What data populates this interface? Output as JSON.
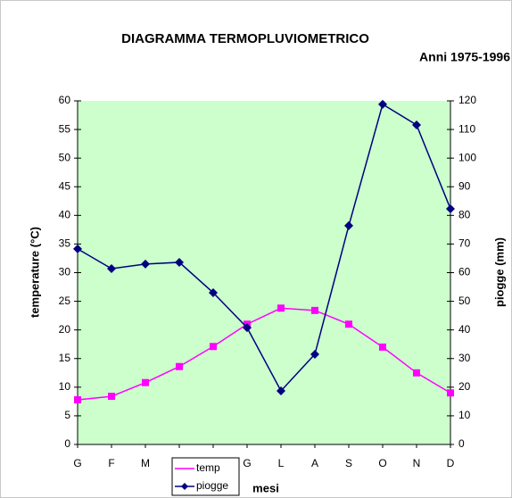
{
  "chart_data": {
    "type": "line",
    "title": "DIAGRAMMA  TERMOPLUVIOMETRICO",
    "subtitle": "Anni 1975-1996",
    "x_label": "mesi",
    "y_label": "temperature (°C)",
    "y2_label": "piogge (mm)",
    "categories": [
      "G",
      "F",
      "M",
      "A",
      "M",
      "G",
      "L",
      "A",
      "S",
      "O",
      "N",
      "D"
    ],
    "series": [
      {
        "name": "temp",
        "color": "#ff00ff",
        "marker": "square",
        "values": [
          7.8,
          8.4,
          10.8,
          13.6,
          17.1,
          21.0,
          23.8,
          23.4,
          21.0,
          17.0,
          12.5,
          9.0
        ]
      },
      {
        "name": "piogge",
        "color": "#000080",
        "marker": "diamond",
        "axis": "y2",
        "values": [
          68.3,
          61.4,
          63.0,
          63.6,
          53.0,
          40.8,
          18.7,
          31.5,
          76.4,
          118.8,
          111.6,
          82.3
        ]
      }
    ],
    "ylim": [
      0,
      60
    ],
    "yticks": [
      0,
      5,
      10,
      15,
      20,
      25,
      30,
      35,
      40,
      45,
      50,
      55,
      60
    ],
    "y2lim": [
      0,
      120
    ],
    "y2ticks": [
      0,
      10,
      20,
      30,
      40,
      50,
      60,
      70,
      80,
      90,
      100,
      110,
      120
    ],
    "plot_background": "#ccffcc",
    "legend": "bottom"
  }
}
